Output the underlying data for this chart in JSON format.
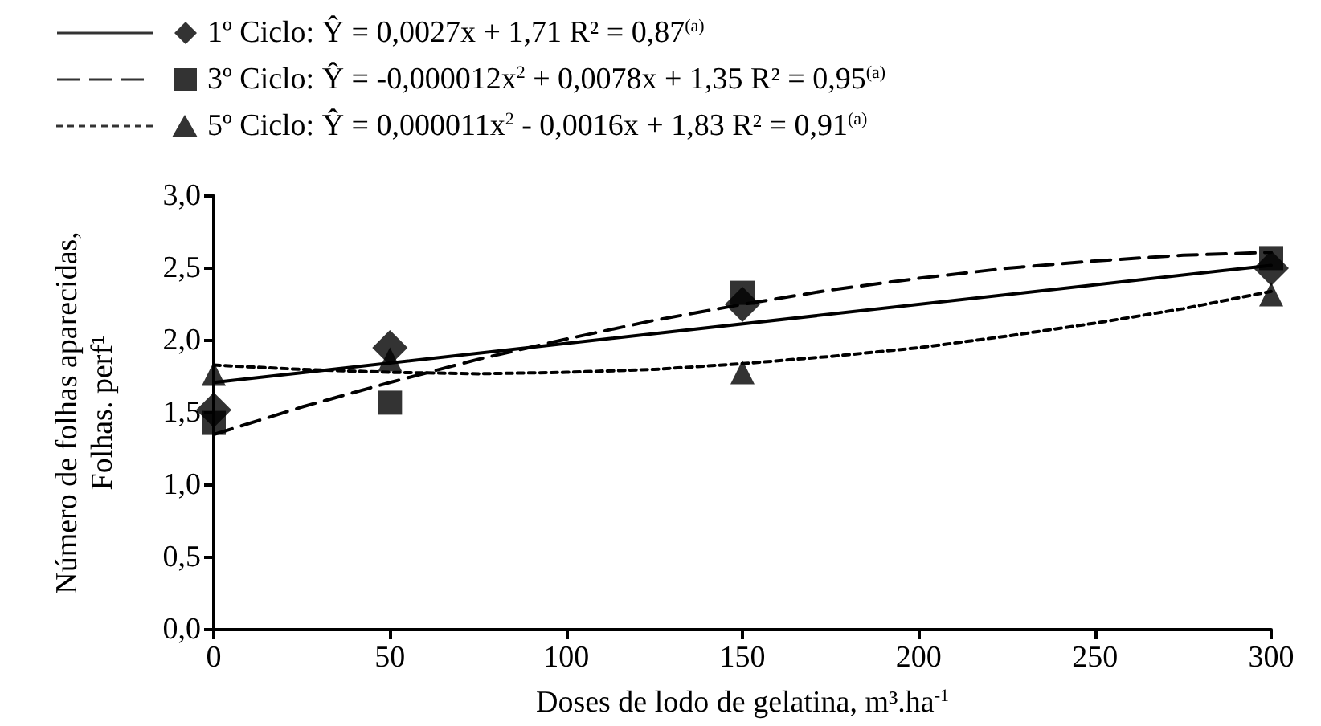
{
  "chart_data": {
    "type": "scatter",
    "xlabel": "Doses de lodo de gelatina, m³.ha$^{-1}$",
    "ylabel": "Número de folhas aparecidas, Folhas. perf¹",
    "xlim": [
      0,
      300
    ],
    "xticks": [
      0,
      50,
      100,
      150,
      200,
      250,
      300
    ],
    "ylim": [
      0,
      3
    ],
    "yticks": [
      {
        "value": 0,
        "label": "0,0"
      },
      {
        "value": 0.5,
        "label": "0,5"
      },
      {
        "value": 1,
        "label": "1,0"
      },
      {
        "value": 1.5,
        "label": "1,5"
      },
      {
        "value": 2,
        "label": "2,0"
      },
      {
        "value": 2.5,
        "label": "2,5"
      },
      {
        "value": 3,
        "label": "3,0"
      }
    ],
    "grid": false,
    "legend": "top left",
    "series": [
      {
        "type": "line",
        "color": "#000000",
        "line_style": "solid",
        "x": [
          0,
          300
        ],
        "values": [
          1.71,
          2.52
        ]
      },
      {
        "type": "line",
        "color": "#000000",
        "line_style": "dashed",
        "x": [
          0,
          25,
          50,
          75,
          100,
          125,
          150,
          175,
          200,
          225,
          250,
          275,
          300
        ],
        "values": [
          1.35,
          1.54,
          1.71,
          1.87,
          2.01,
          2.14,
          2.25,
          2.35,
          2.43,
          2.5,
          2.55,
          2.59,
          2.61
        ]
      },
      {
        "type": "line",
        "color": "#000000",
        "line_style": "dotted",
        "x": [
          0,
          25,
          50,
          75,
          100,
          125,
          150,
          175,
          200,
          225,
          250,
          275,
          300
        ],
        "values": [
          1.83,
          1.8,
          1.78,
          1.77,
          1.78,
          1.8,
          1.84,
          1.89,
          1.95,
          2.03,
          2.12,
          2.22,
          2.34
        ]
      },
      {
        "name": "1º Ciclo: Ŷ = 0,0027x + 1,71 R² = 0,87$^{(a)}$",
        "color": "#000000",
        "marker": "diamond",
        "x": [
          0,
          50,
          150,
          300
        ],
        "values": [
          1.52,
          1.95,
          2.25,
          2.5
        ]
      },
      {
        "name": "3º Ciclo: Ŷ = -0,000012x$^{2}$ + 0,0078x + 1,35 R² = 0,95$^{(a)}$",
        "color": "#000000",
        "marker": "square",
        "x": [
          0,
          50,
          150,
          300
        ],
        "values": [
          1.43,
          1.57,
          2.33,
          2.57
        ]
      },
      {
        "name": "5º Ciclo: Ŷ = 0,000011x$^{2}$ - 0,0016x + 1,83 R² = 0,91$^{(a)}$",
        "color": "#000000",
        "marker": "triangle",
        "x": [
          0,
          50,
          150,
          300
        ],
        "values": [
          1.77,
          1.87,
          1.78,
          2.32
        ]
      }
    ]
  }
}
